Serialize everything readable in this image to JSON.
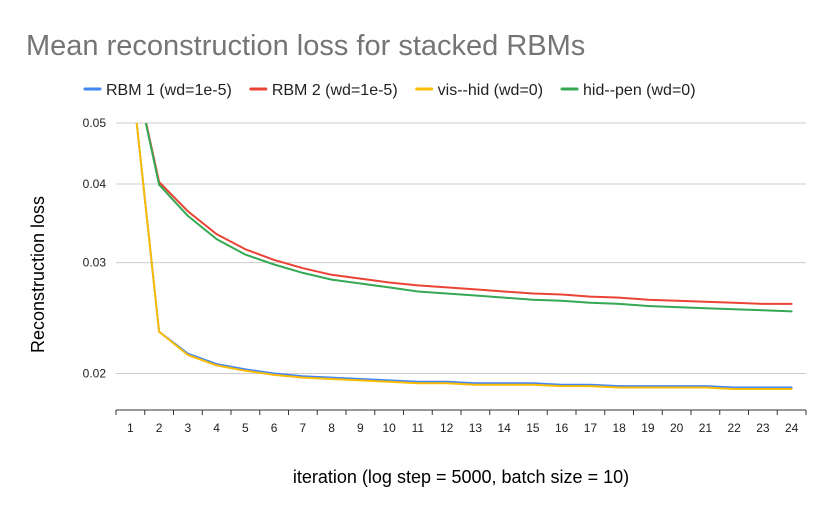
{
  "chart_data": {
    "type": "line",
    "title": "Mean reconstruction loss for stacked RBMs",
    "xlabel": "iteration (log step = 5000, batch size = 10)",
    "ylabel": "Reconstruction loss",
    "y_scale": "log",
    "ylim": [
      0.0175,
      0.05
    ],
    "yticks": [
      0.02,
      0.03,
      0.04,
      0.05
    ],
    "ytick_labels": [
      "0.02",
      "0.03",
      "0.04",
      "0.05"
    ],
    "x": [
      1,
      2,
      3,
      4,
      5,
      6,
      7,
      8,
      9,
      10,
      11,
      12,
      13,
      14,
      15,
      16,
      17,
      18,
      19,
      20,
      21,
      22,
      23,
      24
    ],
    "grid": true,
    "legend_position": "top",
    "series": [
      {
        "name": "RBM 1 (wd=1e-5)",
        "color": "#4285f4",
        "values": [
          0.062,
          0.0233,
          0.0215,
          0.0207,
          0.0203,
          0.02,
          0.0198,
          0.0197,
          0.0196,
          0.0195,
          0.0194,
          0.0194,
          0.0193,
          0.0193,
          0.0193,
          0.0192,
          0.0192,
          0.0191,
          0.0191,
          0.0191,
          0.0191,
          0.019,
          0.019,
          0.019
        ]
      },
      {
        "name": "RBM 2 (wd=1e-5)",
        "color": "#ea4335",
        "values": [
          0.065,
          0.0403,
          0.0362,
          0.0333,
          0.0315,
          0.0303,
          0.0294,
          0.0287,
          0.0283,
          0.0279,
          0.0276,
          0.0274,
          0.0272,
          0.027,
          0.0268,
          0.0267,
          0.0265,
          0.0264,
          0.0262,
          0.0261,
          0.026,
          0.0259,
          0.0258,
          0.0258
        ]
      },
      {
        "name": "vis--hid (wd=0)",
        "color": "#fbbc04",
        "values": [
          0.062,
          0.0233,
          0.0214,
          0.0206,
          0.0202,
          0.0199,
          0.0197,
          0.0196,
          0.0195,
          0.0194,
          0.0193,
          0.0193,
          0.0192,
          0.0192,
          0.0192,
          0.0191,
          0.0191,
          0.019,
          0.019,
          0.019,
          0.019,
          0.0189,
          0.0189,
          0.0189
        ]
      },
      {
        "name": "hid--pen (wd=0)",
        "color": "#34a853",
        "values": [
          0.065,
          0.0399,
          0.0356,
          0.0327,
          0.0309,
          0.0298,
          0.0289,
          0.0282,
          0.0278,
          0.0274,
          0.027,
          0.0268,
          0.0266,
          0.0264,
          0.0262,
          0.0261,
          0.0259,
          0.0258,
          0.0256,
          0.0255,
          0.0254,
          0.0253,
          0.0252,
          0.0251
        ]
      }
    ]
  }
}
